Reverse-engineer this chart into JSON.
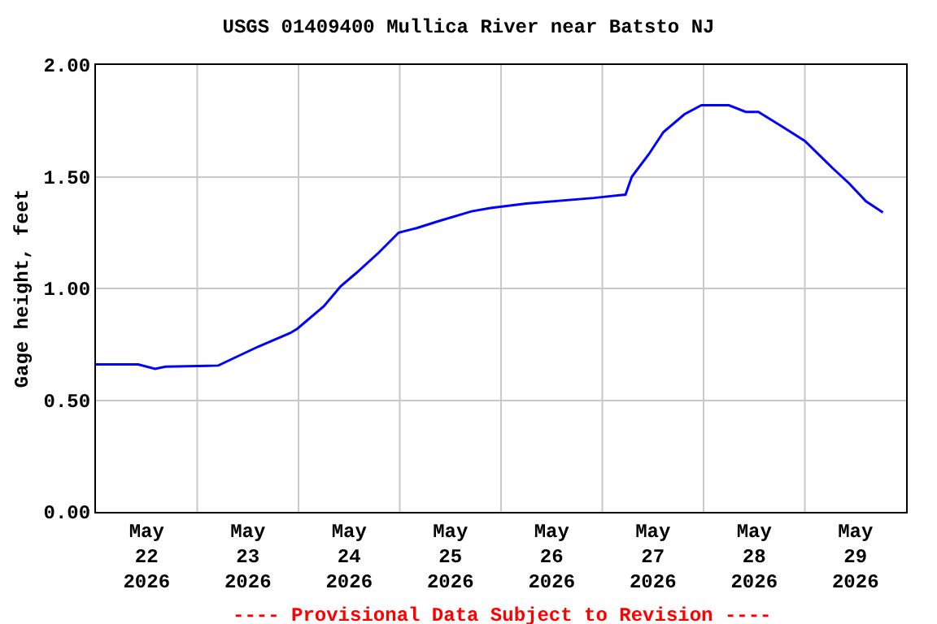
{
  "chart_data": {
    "type": "line",
    "title": "USGS 01409400 Mullica River near Batsto NJ",
    "ylabel": "Gage height, feet",
    "x": [
      "2026-05-22T00:00",
      "2026-05-22T10:00",
      "2026-05-22T14:00",
      "2026-05-22T16:30",
      "2026-05-23T05:00",
      "2026-05-23T10:00",
      "2026-05-23T14:30",
      "2026-05-23T22:00",
      "2026-05-23T23:45",
      "2026-05-24T06:00",
      "2026-05-24T10:00",
      "2026-05-24T13:45",
      "2026-05-24T19:00",
      "2026-05-24T23:45",
      "2026-05-25T04:00",
      "2026-05-25T09:00",
      "2026-05-25T17:00",
      "2026-05-25T21:30",
      "2026-05-26T06:00",
      "2026-05-26T22:00",
      "2026-05-27T05:30",
      "2026-05-27T07:00",
      "2026-05-27T11:00",
      "2026-05-27T14:30",
      "2026-05-27T19:30",
      "2026-05-27T23:30",
      "2026-05-28T06:00",
      "2026-05-28T10:00",
      "2026-05-28T13:00",
      "2026-05-28T19:00",
      "2026-05-29T00:00",
      "2026-05-29T06:30",
      "2026-05-29T10:30",
      "2026-05-29T14:30",
      "2026-05-29T18:30"
    ],
    "series": [
      {
        "color": "#0000ff",
        "values": [
          0.66,
          0.66,
          0.64,
          0.65,
          0.655,
          0.7,
          0.74,
          0.8,
          0.82,
          0.92,
          1.01,
          1.07,
          1.16,
          1.25,
          1.27,
          1.3,
          1.345,
          1.36,
          1.38,
          1.405,
          1.42,
          1.5,
          1.6,
          1.7,
          1.78,
          1.82,
          1.82,
          1.79,
          1.79,
          1.72,
          1.66,
          1.54,
          1.47,
          1.39,
          1.34
        ]
      }
    ],
    "xlim": [
      "2026-05-22T00:00",
      "2026-05-30T00:00"
    ],
    "xticks": [
      {
        "value": "2026-05-22T12:00",
        "label": "May 22 2026"
      },
      {
        "value": "2026-05-23T12:00",
        "label": "May 23 2026"
      },
      {
        "value": "2026-05-24T12:00",
        "label": "May 24 2026"
      },
      {
        "value": "2026-05-25T12:00",
        "label": "May 25 2026"
      },
      {
        "value": "2026-05-26T12:00",
        "label": "May 26 2026"
      },
      {
        "value": "2026-05-27T12:00",
        "label": "May 27 2026"
      },
      {
        "value": "2026-05-28T12:00",
        "label": "May 28 2026"
      },
      {
        "value": "2026-05-29T12:00",
        "label": "May 29 2026"
      },
      {
        "value": "2026-05-23",
        "label": null
      },
      {
        "value": "2026-05-24",
        "label": null
      },
      {
        "value": "2026-05-25",
        "label": null
      },
      {
        "value": "2026-05-26",
        "label": null
      },
      {
        "value": "2026-05-27",
        "label": null
      },
      {
        "value": "2026-05-28",
        "label": null
      },
      {
        "value": "2026-05-29",
        "label": null
      }
    ],
    "ylim": [
      0,
      2
    ],
    "yticks": [
      {
        "value": 0,
        "label": "0.00"
      },
      {
        "value": 0.5,
        "label": "0.50"
      },
      {
        "value": 1,
        "label": "1.00"
      },
      {
        "value": 1.5,
        "label": "1.50"
      },
      {
        "value": 2,
        "label": "2.00"
      }
    ],
    "grid": true,
    "annotations": [
      "---- Provisional Data Subject to Revision ----"
    ]
  }
}
